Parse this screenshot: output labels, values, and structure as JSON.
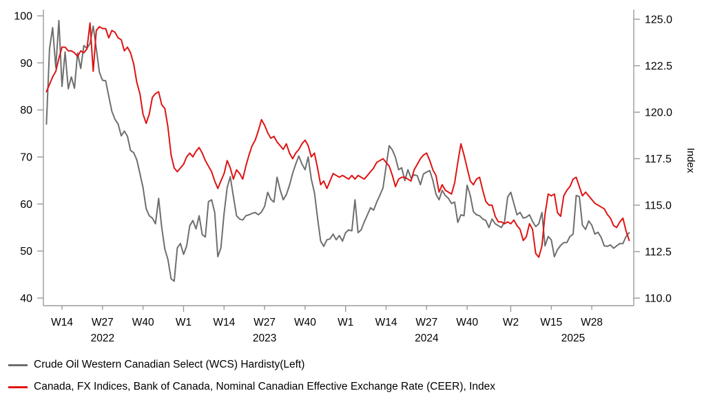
{
  "chart_data": {
    "type": "line",
    "title": "",
    "background": "#ffffff",
    "axis_color": "#9a9a9a",
    "text_color": "#000000",
    "left_axis": {
      "min": 40,
      "max": 100,
      "ticks": [
        40,
        50,
        60,
        70,
        80,
        90,
        100
      ]
    },
    "right_axis": {
      "min": 110,
      "max": 125,
      "tick_labels": [
        "110.0",
        "112.5",
        "115.0",
        "117.5",
        "120.0",
        "122.5",
        "125.0"
      ],
      "tick_values": [
        110,
        112.5,
        115,
        117.5,
        120,
        122.5,
        125
      ],
      "label": "Index"
    },
    "x_axis": {
      "start_week": "2022-W09",
      "weeks_total": 188,
      "tick_labels": [
        {
          "label": "W14",
          "i": 5
        },
        {
          "label": "W27",
          "i": 18
        },
        {
          "label": "W40",
          "i": 31
        },
        {
          "label": "W1",
          "i": 44
        },
        {
          "label": "W14",
          "i": 57
        },
        {
          "label": "W27",
          "i": 70
        },
        {
          "label": "W40",
          "i": 83
        },
        {
          "label": "W1",
          "i": 96
        },
        {
          "label": "W14",
          "i": 109
        },
        {
          "label": "W27",
          "i": 122
        },
        {
          "label": "W40",
          "i": 135
        },
        {
          "label": "W2",
          "i": 149
        },
        {
          "label": "W15",
          "i": 162
        },
        {
          "label": "W28",
          "i": 175
        }
      ],
      "year_labels": [
        {
          "label": "2022",
          "i": 18
        },
        {
          "label": "2023",
          "i": 70
        },
        {
          "label": "2024",
          "i": 122
        },
        {
          "label": "2025",
          "i": 169
        }
      ]
    },
    "series": [
      {
        "name": "Crude Oil Western Canadian Select (WCS) Hardisty(Left)",
        "axis": "left",
        "color": "#6e6e6e",
        "values": [
          77.0,
          93.0,
          97.5,
          89.0,
          99.0,
          85.0,
          92.3,
          84.5,
          87.0,
          84.6,
          92.1,
          88.8,
          93.7,
          93.1,
          94.1,
          97.8,
          93.0,
          88.0,
          86.3,
          86.2,
          82.9,
          79.7,
          78.0,
          77.0,
          74.5,
          75.5,
          74.4,
          71.4,
          70.9,
          69.4,
          66.5,
          63.5,
          59.0,
          57.5,
          57.0,
          55.8,
          61.2,
          55.0,
          50.4,
          48.2,
          44.1,
          43.6,
          50.7,
          51.6,
          49.3,
          51.1,
          55.4,
          56.5,
          54.7,
          57.5,
          53.5,
          53.0,
          60.5,
          60.9,
          58.2,
          48.8,
          50.7,
          58.0,
          63.5,
          65.8,
          61.6,
          57.5,
          56.8,
          56.6,
          57.5,
          57.7,
          58.0,
          58.2,
          57.7,
          58.3,
          59.5,
          62.5,
          61.0,
          60.4,
          65.7,
          63.0,
          60.9,
          62.0,
          64.0,
          66.5,
          68.5,
          70.2,
          68.5,
          67.3,
          70.0,
          65.3,
          62.4,
          57.0,
          52.1,
          51.0,
          52.4,
          52.6,
          53.6,
          52.4,
          53.3,
          52.1,
          53.9,
          54.5,
          54.3,
          60.9,
          53.9,
          54.5,
          56.2,
          57.7,
          59.2,
          58.7,
          60.4,
          61.9,
          63.4,
          68.0,
          72.4,
          71.5,
          69.9,
          67.3,
          67.7,
          65.0,
          67.3,
          65.5,
          66.2,
          66.0,
          64.1,
          66.4,
          66.8,
          67.1,
          65.0,
          62.1,
          60.9,
          62.9,
          61.8,
          61.2,
          60.1,
          60.4,
          56.1,
          57.7,
          57.5,
          64.0,
          61.8,
          58.4,
          57.7,
          57.5,
          56.8,
          56.5,
          55.0,
          56.8,
          55.8,
          55.4,
          55.0,
          56.2,
          61.5,
          62.5,
          60.1,
          57.7,
          58.2,
          57.0,
          57.2,
          57.7,
          56.3,
          55.2,
          55.8,
          58.2,
          51.1,
          53.1,
          52.4,
          48.8,
          50.3,
          51.2,
          51.8,
          51.8,
          53.1,
          53.6,
          61.8,
          61.6,
          55.5,
          54.6,
          56.4,
          55.5,
          53.6,
          54.0,
          52.9,
          51.1,
          51.0,
          51.3,
          50.6,
          51.1,
          51.6,
          51.6,
          53.1,
          53.9
        ]
      },
      {
        "name": "Canada, FX Indices, Bank of Canada, Nominal Canadian Effective Exchange Rate (CEER), Index",
        "axis": "right",
        "color": "#e01212",
        "values": [
          121.1,
          121.5,
          121.9,
          122.2,
          122.9,
          123.5,
          123.5,
          123.3,
          123.3,
          123.2,
          123.0,
          123.3,
          123.2,
          123.4,
          124.8,
          122.2,
          124.4,
          124.6,
          124.5,
          124.5,
          124.0,
          124.4,
          124.3,
          124.0,
          123.9,
          123.3,
          123.5,
          123.2,
          122.6,
          121.6,
          121.0,
          119.9,
          119.4,
          119.9,
          120.8,
          121.0,
          121.1,
          120.4,
          120.2,
          119.2,
          117.7,
          117.0,
          116.8,
          117.0,
          117.2,
          117.6,
          117.8,
          117.6,
          117.9,
          118.1,
          117.8,
          117.4,
          117.1,
          116.8,
          116.3,
          115.9,
          116.3,
          116.7,
          117.4,
          117.0,
          116.4,
          116.9,
          116.7,
          116.4,
          117.1,
          117.7,
          118.2,
          118.5,
          119.0,
          119.6,
          119.3,
          118.9,
          118.6,
          118.7,
          118.4,
          118.2,
          118.0,
          118.3,
          117.8,
          117.5,
          117.8,
          118.0,
          118.3,
          118.5,
          118.2,
          117.6,
          117.8,
          117.0,
          116.1,
          116.3,
          115.9,
          116.3,
          116.7,
          116.6,
          116.5,
          116.6,
          116.5,
          116.4,
          116.6,
          116.4,
          116.6,
          116.5,
          116.4,
          116.6,
          116.8,
          117.0,
          117.3,
          117.4,
          117.5,
          117.3,
          117.1,
          116.6,
          116.0,
          116.4,
          116.5,
          116.5,
          116.4,
          116.3,
          116.9,
          117.2,
          117.5,
          117.7,
          117.8,
          117.4,
          116.9,
          116.6,
          115.7,
          116.1,
          115.8,
          115.7,
          115.6,
          116.2,
          117.3,
          118.3,
          117.7,
          117.0,
          116.3,
          116.1,
          116.4,
          116.5,
          115.8,
          115.2,
          115.0,
          115.0,
          114.4,
          114.1,
          114.1,
          114.0,
          114.1,
          114.0,
          114.2,
          113.9,
          113.7,
          113.1,
          113.3,
          114.0,
          113.7,
          112.4,
          112.2,
          112.8,
          114.5,
          115.6,
          115.5,
          115.6,
          114.6,
          114.4,
          115.5,
          115.8,
          116.0,
          116.4,
          116.5,
          116.0,
          115.5,
          115.7,
          115.5,
          115.3,
          115.1,
          115.0,
          114.9,
          114.8,
          114.5,
          114.3,
          113.9,
          113.8,
          114.1,
          114.3,
          113.6,
          113.1
        ]
      }
    ]
  },
  "legend": {
    "items": [
      {
        "label": "Crude Oil Western Canadian Select (WCS) Hardisty(Left)",
        "color": "#6e6e6e"
      },
      {
        "label": "Canada, FX Indices, Bank of Canada, Nominal Canadian Effective Exchange Rate (CEER), Index",
        "color": "#e01212"
      }
    ]
  }
}
